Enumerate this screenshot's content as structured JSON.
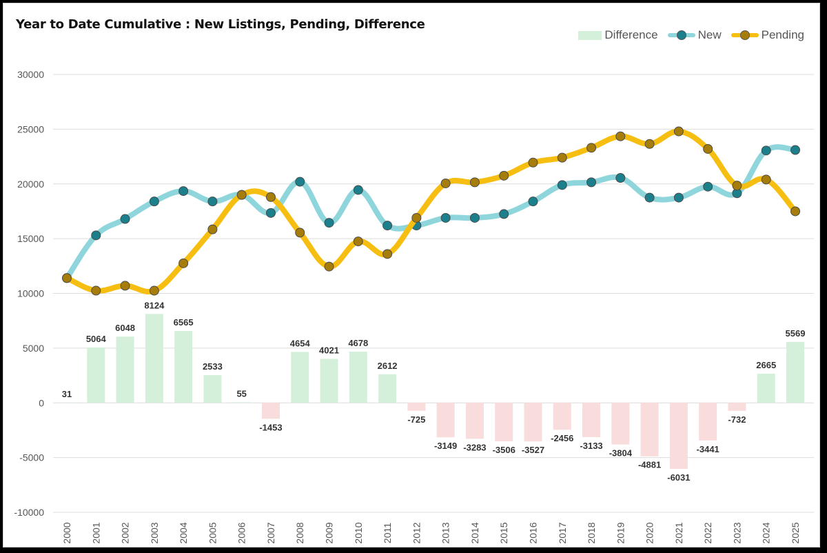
{
  "chart_data": {
    "type": "bar+line",
    "title": "Year to Date Cumulative : New Listings, Pending, Difference",
    "categories": [
      "2000",
      "2001",
      "2002",
      "2003",
      "2004",
      "2005",
      "2006",
      "2007",
      "2008",
      "2009",
      "2010",
      "2011",
      "2012",
      "2013",
      "2014",
      "2015",
      "2016",
      "2017",
      "2018",
      "2019",
      "2020",
      "2021",
      "2022",
      "2023",
      "2024",
      "2025"
    ],
    "ylim": [
      -10000,
      30000
    ],
    "yticks": [
      30000,
      25000,
      20000,
      15000,
      10000,
      5000,
      0,
      -5000,
      -10000
    ],
    "grid": true,
    "legend_position": "top-right",
    "series": [
      {
        "name": "Difference",
        "type": "bar",
        "values": [
          31,
          5064,
          6048,
          8124,
          6565,
          2533,
          55,
          -1453,
          4654,
          4021,
          4678,
          2612,
          -725,
          -3149,
          -3283,
          -3506,
          -3527,
          -2456,
          -3133,
          -3804,
          -4881,
          -6031,
          -3441,
          -732,
          2665,
          5569
        ],
        "color_positive": "#d4f0da",
        "color_negative": "#f9dcdc"
      },
      {
        "name": "New",
        "type": "line",
        "values": [
          11400,
          15300,
          16800,
          18400,
          19350,
          18400,
          19000,
          17350,
          20200,
          16450,
          19450,
          16200,
          16200,
          16900,
          16900,
          17250,
          18400,
          19900,
          20150,
          20550,
          18750,
          18750,
          19750,
          19150,
          23050,
          23100
        ],
        "color": "#8fd6dc",
        "marker_color": "#1b7f8c"
      },
      {
        "name": "Pending",
        "type": "line",
        "values": [
          11400,
          10250,
          10700,
          10250,
          12750,
          15850,
          19000,
          18800,
          15550,
          12450,
          14750,
          13600,
          16900,
          20050,
          20150,
          20750,
          21950,
          22400,
          23300,
          24350,
          23650,
          24800,
          23200,
          19850,
          20400,
          17500
        ],
        "color": "#f6be10",
        "marker_color": "#a67c0a"
      }
    ]
  }
}
